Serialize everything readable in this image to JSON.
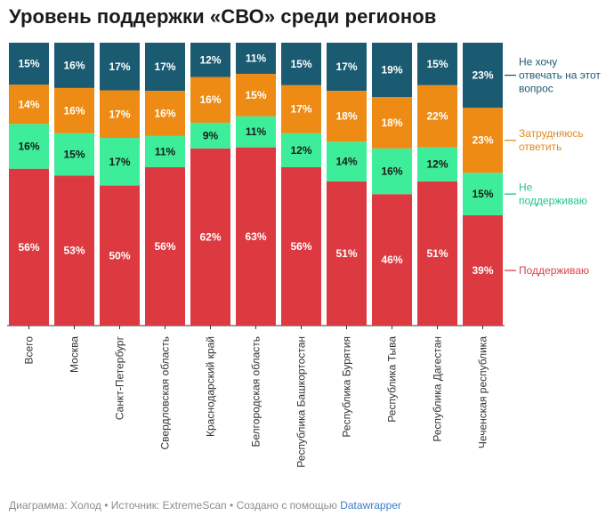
{
  "title": "Уровень поддержки «СВО» среди регионов",
  "footer": {
    "text": "Диаграмма: Холод • Источник: ExtremeScan • Создано с помощью ",
    "link": "Datawrapper"
  },
  "colors": {
    "support": "#dc3a40",
    "not_support": "#3ded99",
    "hesitate": "#ee8b14",
    "no_answer": "#1b5b72",
    "legend_support": "#d9434a",
    "legend_not_support": "#1fc48a",
    "legend_hesitate": "#e38a1e",
    "legend_no_answer": "#1b5b72"
  },
  "chart_data": {
    "type": "bar",
    "stacked": true,
    "categories": [
      "Всего",
      "Москва",
      "Санкт-Петербург",
      "Свердловская область",
      "Краснодарский край",
      "Белгородская область",
      "Республика Башкортостан",
      "Республика Бурятия",
      "Республика Тыва",
      "Республика Дагестан",
      "Чеченская республика"
    ],
    "series": [
      {
        "name": "Поддерживаю",
        "key": "support",
        "values": [
          56,
          53,
          50,
          56,
          62,
          63,
          56,
          51,
          46,
          51,
          39
        ]
      },
      {
        "name": "Не поддерживаю",
        "key": "not_support",
        "values": [
          16,
          15,
          17,
          11,
          9,
          11,
          12,
          14,
          16,
          12,
          15
        ]
      },
      {
        "name": "Затрудняюсь ответить",
        "key": "hesitate",
        "values": [
          14,
          16,
          17,
          16,
          16,
          15,
          17,
          18,
          18,
          22,
          23
        ]
      },
      {
        "name": "Не хочу отвечать на этот вопрос",
        "key": "no_answer",
        "values": [
          15,
          16,
          17,
          17,
          12,
          11,
          15,
          17,
          19,
          15,
          23
        ]
      }
    ],
    "value_suffix": "%",
    "legend_position": "right, labels aligned with last bar"
  }
}
